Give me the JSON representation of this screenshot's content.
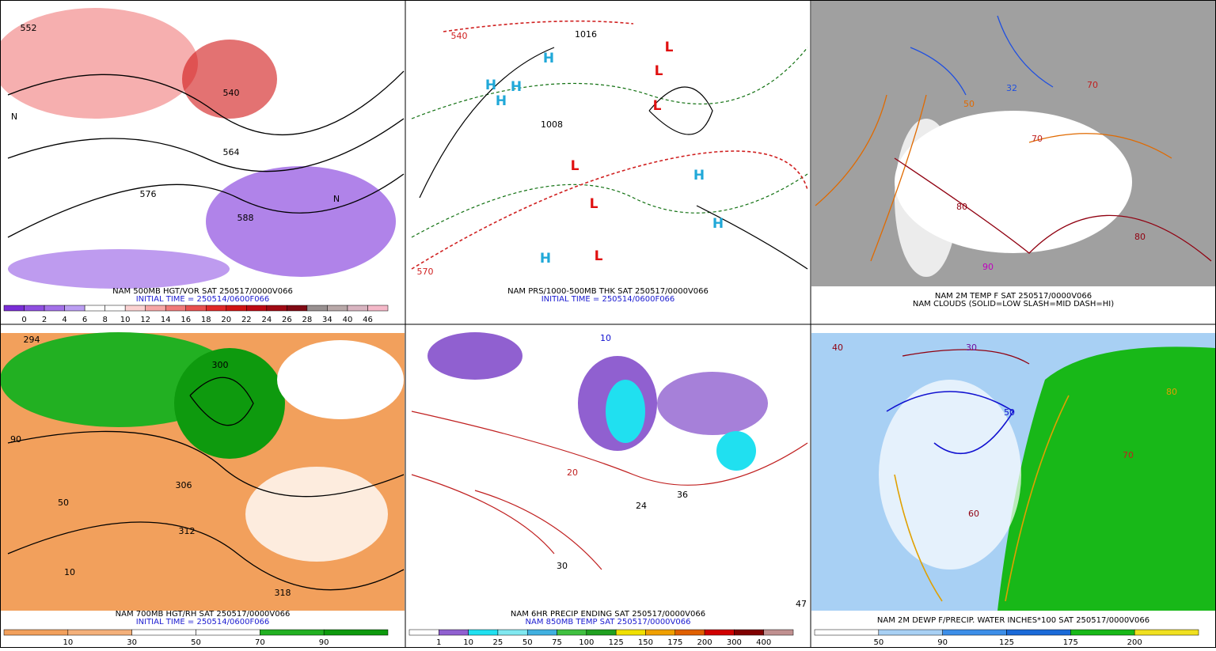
{
  "panels": [
    {
      "title": "NAM 500MB HGT/VOR SAT 250517/0000V066",
      "subtitle": "INITIAL TIME = 250514/0600F066",
      "map_labels": [
        "552",
        "540",
        "564",
        "576",
        "588",
        "N",
        "N"
      ],
      "colorbar": {
        "labels": [
          "0",
          "2",
          "4",
          "6",
          "8",
          "10",
          "12",
          "14",
          "16",
          "18",
          "20",
          "22",
          "24",
          "26",
          "28",
          "34",
          "40",
          "46"
        ],
        "colors": [
          "#7a2ed6",
          "#8f4fe0",
          "#a371e8",
          "#bb9ef2",
          "#ffffff",
          "#ffffff",
          "#fbd2d2",
          "#f6a6a6",
          "#f07a7a",
          "#e85050",
          "#e02828",
          "#d01414",
          "#bd0a14",
          "#a00a14",
          "#800a14",
          "#989090",
          "#b8a8a8",
          "#d8b4c0",
          "#f4b8c8"
        ]
      }
    },
    {
      "title": "NAM PRS/1000-500MB THK SAT 250517/0000V066",
      "subtitle": "INITIAL TIME = 250514/0600F066",
      "map_labels": [
        "H",
        "H",
        "H",
        "H",
        "H",
        "H",
        "H",
        "L",
        "L",
        "L",
        "L",
        "L",
        "L",
        "1008",
        "1016",
        "540",
        "570"
      ]
    },
    {
      "title": "NAM 2M TEMP F SAT 250517/0000V066",
      "subtitle": "NAM CLOUDS (SOLID=LOW SLASH=MID DASH=HI)",
      "map_labels": [
        "32",
        "50",
        "70",
        "70",
        "80",
        "80",
        "90"
      ]
    },
    {
      "title": "NAM 700MB HGT/RH SAT 250517/0000V066",
      "subtitle": "INITIAL TIME = 250514/0600F066",
      "map_labels": [
        "294",
        "300",
        "306",
        "312",
        "318",
        "10",
        "50",
        "90"
      ],
      "colorbar": {
        "labels": [
          "10",
          "30",
          "50",
          "70",
          "90"
        ],
        "colors": [
          "#f2a05c",
          "#f4b07a",
          "#ffffff",
          "#ffffff",
          "#22b022",
          "#0e9a0e"
        ]
      }
    },
    {
      "title": "NAM 6HR PRECIP ENDING SAT 250517/0000V066",
      "subtitle": "NAM 850MB TEMP SAT 250517/0000V066",
      "map_labels": [
        "30",
        "24",
        "36",
        "20",
        "10",
        "47"
      ],
      "colorbar": {
        "labels": [
          "1",
          "10",
          "25",
          "50",
          "75",
          "100",
          "125",
          "150",
          "175",
          "200",
          "300",
          "400"
        ],
        "colors": [
          "#ffffff",
          "#9060d0",
          "#20e0f0",
          "#80e8f0",
          "#40b0e0",
          "#40c040",
          "#20a020",
          "#f0e000",
          "#f0a000",
          "#e06000",
          "#d00000",
          "#800000",
          "#c09090"
        ]
      }
    },
    {
      "title": "NAM 2M DEWP F/PRECIP. WATER INCHES*100 SAT 250517/0000V066",
      "map_labels": [
        "40",
        "50",
        "60",
        "30",
        "70",
        "80"
      ],
      "colorbar": {
        "labels": [
          "50",
          "90",
          "125",
          "175",
          "200"
        ],
        "colors": [
          "#ffffff",
          "#a8d0f4",
          "#3c8ee8",
          "#1a6ad8",
          "#18b818",
          "#f0e020"
        ]
      }
    }
  ]
}
